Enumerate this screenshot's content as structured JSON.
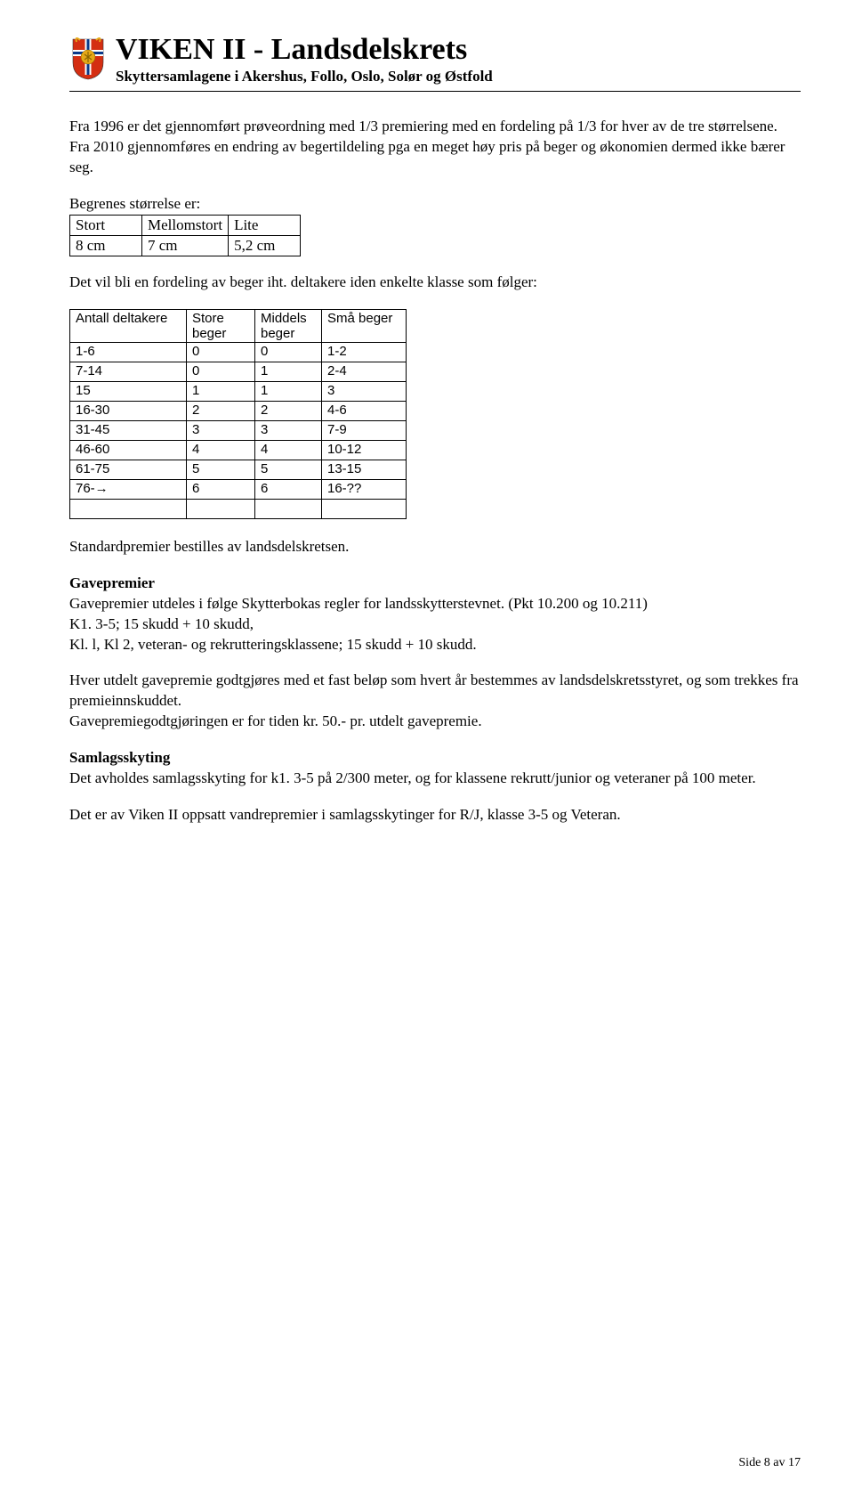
{
  "header": {
    "title": "VIKEN II - Landsdelskrets",
    "subtitle": "Skyttersamlagene i Akershus, Follo, Oslo, Solør og Østfold"
  },
  "body": {
    "intro1": "Fra 1996 er det gjennomført prøveordning med 1/3 premiering med en fordeling på 1/3 for hver av de tre størrelsene. Fra 2010 gjennomføres en endring av begertildeling pga en meget høy pris på beger og økonomien dermed ikke bærer seg.",
    "size_caption": "Begrenes størrelse er:",
    "size_table": {
      "columns": [
        "Stort",
        "Mellomstort",
        "Lite"
      ],
      "rows": [
        [
          "8 cm",
          "7 cm",
          "5,2 cm"
        ]
      ]
    },
    "alloc_caption": "Det vil bli en fordeling av beger iht. deltakere iden enkelte klasse som følger:",
    "alloc_table": {
      "header": [
        "Antall deltakere",
        "Store beger",
        "Middels beger",
        "Små beger"
      ],
      "rows": [
        [
          "1-6",
          "0",
          "0",
          "1-2"
        ],
        [
          "7-14",
          "0",
          "1",
          "2-4"
        ],
        [
          "15",
          "1",
          "1",
          "3"
        ],
        [
          "16-30",
          "2",
          "2",
          "4-6"
        ],
        [
          "31-45",
          "3",
          "3",
          "7-9"
        ],
        [
          "46-60",
          "4",
          "4",
          "10-12"
        ],
        [
          "61-75",
          "5",
          "5",
          "13-15"
        ],
        [
          "76-→",
          "6",
          "6",
          "16-??"
        ],
        [
          "",
          "",
          "",
          ""
        ]
      ]
    },
    "standard": "Standardpremier bestilles av landsdelskretsen.",
    "gave_heading": "Gavepremier",
    "gave_body": "Gavepremier utdeles i følge Skytterbokas regler for landsskytterstevnet. (Pkt 10.200 og 10.211)",
    "gave_k1": "K1. 3-5; 15 skudd + 10 skudd,",
    "gave_kl": "Kl. l, Kl 2, veteran- og rekrutteringsklassene; 15 skudd + 10 skudd.",
    "gave_para2": "Hver utdelt gavepremie godtgjøres med et fast beløp som hvert år bestemmes av landsdelskretsstyret, og som trekkes fra premieinnskuddet.",
    "gave_para2b": "Gavepremiegodtgjøringen er for tiden kr. 50.- pr. utdelt gavepremie.",
    "samlag_heading": "Samlagsskyting",
    "samlag_body": "Det avholdes samlagsskyting for k1. 3-5 på 2/300 meter, og for klassene rekrutt/junior og veteraner på 100 meter.",
    "samlag_body2": "Det er av Viken II oppsatt vandrepremier i samlagsskytinger for R/J, klasse 3-5 og Veteran."
  },
  "footer": "Side 8 av 17",
  "colors": {
    "shield_red": "#d42e12",
    "shield_blue": "#0a3a8a",
    "shield_gold": "#e6a817",
    "shield_white": "#ffffff"
  }
}
